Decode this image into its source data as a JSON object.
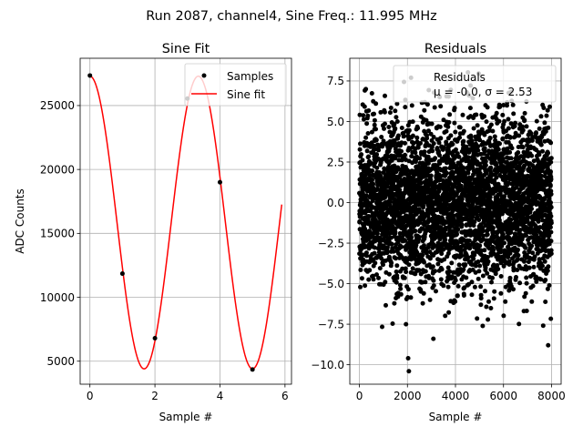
{
  "figure": {
    "suptitle": "Run 2087, channel4, Sine Freq.: 11.995 MHz"
  },
  "chart_data": [
    {
      "type": "line",
      "title": "Sine Fit",
      "xlabel": "Sample #",
      "ylabel": "ADC Counts",
      "xlim": [
        -0.3,
        6.2
      ],
      "ylim": [
        3200,
        28700
      ],
      "xticks": [
        0,
        2,
        4,
        6
      ],
      "xtick_labels": [
        "0",
        "2",
        "4",
        "6"
      ],
      "yticks": [
        5000,
        10000,
        15000,
        20000,
        25000
      ],
      "ytick_labels": [
        "5000",
        "10000",
        "15000",
        "20000",
        "25000"
      ],
      "grid": true,
      "legend_position": "top-right",
      "samples": {
        "name": "Samples",
        "x": [
          0,
          1,
          2,
          3,
          4,
          5
        ],
        "y": [
          27350,
          11850,
          6800,
          25550,
          19000,
          4350
        ],
        "color": "#000000"
      },
      "fit": {
        "name": "Sine fit",
        "model": "A*sin(w*x+phi)+C",
        "params": {
          "A": 11450,
          "w": 1.8845,
          "phi": 1.5708,
          "C": 15850
        },
        "x_range": [
          0,
          5.9
        ],
        "color": "#ff0000"
      }
    },
    {
      "type": "scatter",
      "title": "Residuals",
      "xlabel": "Sample #",
      "ylabel": "",
      "xlim": [
        -400,
        8400
      ],
      "ylim": [
        -11.2,
        8.9
      ],
      "xticks": [
        0,
        2000,
        4000,
        6000,
        8000
      ],
      "xtick_labels": [
        "0",
        "2000",
        "4000",
        "6000",
        "8000"
      ],
      "yticks": [
        -10,
        -7.5,
        -5,
        -2.5,
        0,
        2.5,
        5,
        7.5
      ],
      "ytick_labels": [
        "−10.0",
        "−7.5",
        "−5.0",
        "−2.5",
        "0.0",
        "2.5",
        "5.0",
        "7.5"
      ],
      "grid": true,
      "legend_position": "top-right",
      "legend_lines": [
        "Residuals",
        "μ = -0.0, σ = 2.53"
      ],
      "series": {
        "name": "Residuals",
        "n_points": 8000,
        "x_range": [
          0,
          8000
        ],
        "mean": 0.0,
        "std": 2.53,
        "color": "#000000",
        "notable_points": [
          {
            "x": 2030,
            "y": -9.6
          },
          {
            "x": 2060,
            "y": -10.4
          },
          {
            "x": 2150,
            "y": 7.7
          },
          {
            "x": 3080,
            "y": -8.4
          },
          {
            "x": 1940,
            "y": -7.5
          },
          {
            "x": 7860,
            "y": -8.8
          }
        ]
      }
    }
  ]
}
